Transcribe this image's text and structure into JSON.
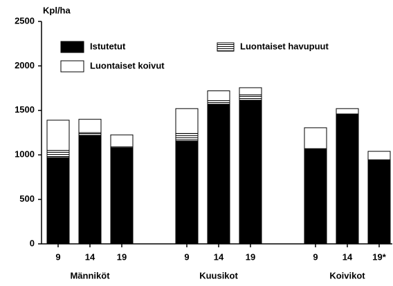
{
  "chart_data": {
    "type": "stacked-bar",
    "y_label": "Kpl/ha",
    "categories": [
      "9",
      "14",
      "19",
      "9",
      "14",
      "19",
      "9",
      "14",
      "19*"
    ],
    "groups": [
      "Männiköt",
      "Kuusikot",
      "Koivikot"
    ],
    "series": [
      {
        "name": "Istutetut",
        "color": "#000000",
        "values": [
          970,
          1220,
          1080,
          1155,
          1570,
          1615,
          1070,
          1460,
          945
        ]
      },
      {
        "name": "Luontaiset havupuut",
        "color": "#000000",
        "hatch": "horizontal",
        "values": [
          80,
          30,
          10,
          85,
          40,
          60,
          0,
          0,
          0
        ]
      },
      {
        "name": "Luontaiset koivut",
        "color": "#ffffff",
        "values": [
          340,
          150,
          135,
          280,
          110,
          80,
          235,
          60,
          95
        ]
      }
    ],
    "ylim": [
      0,
      2500
    ],
    "yticks": [
      0,
      500,
      1000,
      1500,
      2000,
      2500
    ]
  }
}
